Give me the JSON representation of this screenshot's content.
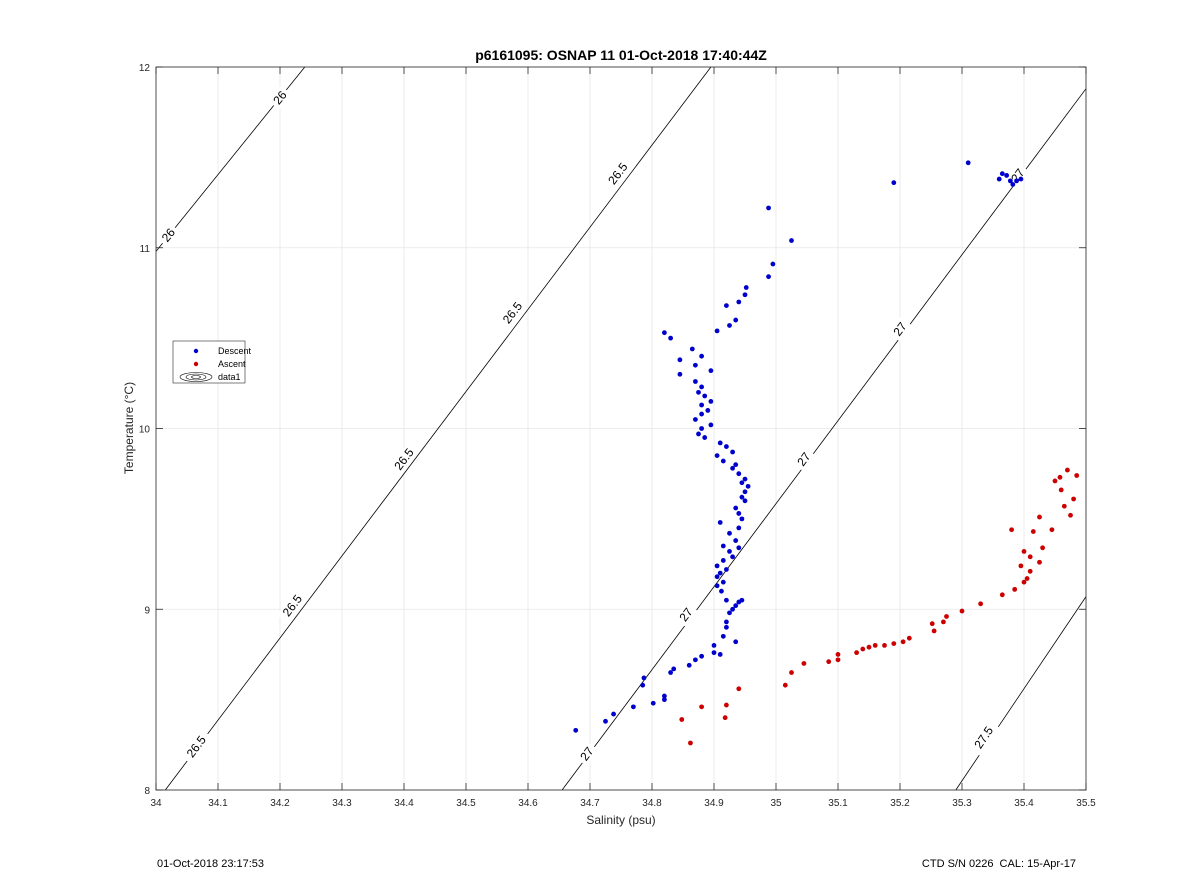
{
  "footer": {
    "left": "01-Oct-2018 23:17:53",
    "right": "CTD S/N 0226  CAL: 15-Apr-17"
  },
  "chart_data": {
    "type": "scatter",
    "title": "p6161095: OSNAP 11 01-Oct-2018 17:40:44Z",
    "xlabel": "Salinity (psu)",
    "ylabel": "Temperature (°C)",
    "xlim": [
      34,
      35.5
    ],
    "ylim": [
      8,
      12
    ],
    "xticks": [
      "34",
      "34.1",
      "34.2",
      "34.3",
      "34.4",
      "34.5",
      "34.6",
      "34.7",
      "34.8",
      "34.9",
      "35",
      "35.1",
      "35.2",
      "35.3",
      "35.4",
      "35.5"
    ],
    "yticks": [
      "8",
      "9",
      "10",
      "11",
      "12"
    ],
    "grid": true,
    "legend_position": "middle-left",
    "legend": [
      "Descent",
      "Ascent",
      "data1"
    ],
    "contours": [
      {
        "level": "26",
        "points": [
          [
            34,
            10.98
          ],
          [
            34.24,
            12
          ]
        ],
        "labels": [
          [
            34.02,
            11.07
          ],
          [
            34.2,
            11.83
          ]
        ]
      },
      {
        "level": "26.5",
        "points": [
          [
            34.015,
            8
          ],
          [
            34.895,
            12
          ]
        ],
        "labels": [
          [
            34.065,
            8.24
          ],
          [
            34.22,
            9.02
          ],
          [
            34.4,
            9.83
          ],
          [
            34.575,
            10.64
          ],
          [
            34.745,
            11.41
          ]
        ]
      },
      {
        "level": "27",
        "points": [
          [
            34.655,
            8
          ],
          [
            35.5,
            11.88
          ]
        ],
        "labels": [
          [
            34.695,
            8.2
          ],
          [
            34.855,
            8.97
          ],
          [
            35.045,
            9.83
          ],
          [
            35.2,
            10.55
          ],
          [
            35.39,
            11.4
          ]
        ]
      },
      {
        "level": "27.5",
        "points": [
          [
            35.29,
            8
          ],
          [
            35.5,
            9.07
          ]
        ],
        "labels": [
          [
            35.335,
            8.29
          ]
        ]
      }
    ],
    "series": [
      {
        "name": "Descent",
        "color": "#0000cc",
        "points": [
          [
            34.677,
            8.33
          ],
          [
            34.725,
            8.38
          ],
          [
            34.738,
            8.42
          ],
          [
            34.77,
            8.46
          ],
          [
            34.785,
            8.58
          ],
          [
            34.787,
            8.62
          ],
          [
            34.802,
            8.48
          ],
          [
            34.82,
            8.5
          ],
          [
            34.82,
            8.52
          ],
          [
            34.83,
            8.65
          ],
          [
            34.835,
            8.67
          ],
          [
            34.86,
            8.69
          ],
          [
            34.87,
            8.72
          ],
          [
            34.88,
            8.74
          ],
          [
            34.9,
            8.76
          ],
          [
            34.91,
            8.75
          ],
          [
            34.9,
            8.8
          ],
          [
            34.915,
            8.85
          ],
          [
            34.92,
            8.9
          ],
          [
            34.92,
            8.93
          ],
          [
            34.935,
            8.82
          ],
          [
            34.925,
            8.98
          ],
          [
            34.93,
            9.0
          ],
          [
            34.935,
            9.02
          ],
          [
            34.94,
            9.04
          ],
          [
            34.945,
            9.05
          ],
          [
            34.92,
            9.05
          ],
          [
            34.912,
            9.1
          ],
          [
            34.905,
            9.13
          ],
          [
            34.915,
            9.15
          ],
          [
            34.905,
            9.18
          ],
          [
            34.91,
            9.2
          ],
          [
            34.92,
            9.22
          ],
          [
            34.905,
            9.24
          ],
          [
            34.915,
            9.27
          ],
          [
            34.93,
            9.29
          ],
          [
            34.925,
            9.32
          ],
          [
            34.94,
            9.34
          ],
          [
            34.915,
            9.35
          ],
          [
            34.935,
            9.38
          ],
          [
            34.925,
            9.42
          ],
          [
            34.94,
            9.45
          ],
          [
            34.91,
            9.48
          ],
          [
            34.945,
            9.5
          ],
          [
            34.94,
            9.53
          ],
          [
            34.935,
            9.56
          ],
          [
            34.95,
            9.6
          ],
          [
            34.945,
            9.62
          ],
          [
            34.95,
            9.65
          ],
          [
            34.955,
            9.68
          ],
          [
            34.945,
            9.7
          ],
          [
            34.95,
            9.72
          ],
          [
            34.94,
            9.75
          ],
          [
            34.93,
            9.78
          ],
          [
            34.935,
            9.8
          ],
          [
            34.915,
            9.82
          ],
          [
            34.905,
            9.85
          ],
          [
            34.93,
            9.87
          ],
          [
            34.92,
            9.9
          ],
          [
            34.91,
            9.92
          ],
          [
            34.885,
            9.95
          ],
          [
            34.875,
            9.97
          ],
          [
            34.88,
            10.0
          ],
          [
            34.895,
            10.02
          ],
          [
            34.87,
            10.05
          ],
          [
            34.88,
            10.08
          ],
          [
            34.89,
            10.1
          ],
          [
            34.88,
            10.13
          ],
          [
            34.895,
            10.15
          ],
          [
            34.885,
            10.18
          ],
          [
            34.875,
            10.2
          ],
          [
            34.88,
            10.23
          ],
          [
            34.87,
            10.26
          ],
          [
            34.845,
            10.3
          ],
          [
            34.895,
            10.32
          ],
          [
            34.87,
            10.35
          ],
          [
            34.845,
            10.38
          ],
          [
            34.88,
            10.4
          ],
          [
            34.865,
            10.44
          ],
          [
            34.83,
            10.5
          ],
          [
            34.82,
            10.53
          ],
          [
            34.905,
            10.54
          ],
          [
            34.925,
            10.57
          ],
          [
            34.935,
            10.6
          ],
          [
            34.92,
            10.68
          ],
          [
            34.94,
            10.7
          ],
          [
            34.95,
            10.74
          ],
          [
            34.952,
            10.78
          ],
          [
            34.988,
            10.84
          ],
          [
            34.995,
            10.91
          ],
          [
            35.025,
            11.04
          ],
          [
            34.988,
            11.22
          ],
          [
            35.19,
            11.36
          ],
          [
            35.31,
            11.47
          ],
          [
            35.36,
            11.38
          ],
          [
            35.365,
            11.41
          ],
          [
            35.372,
            11.4
          ],
          [
            35.378,
            11.37
          ],
          [
            35.382,
            11.35
          ],
          [
            35.388,
            11.37
          ],
          [
            35.395,
            11.38
          ]
        ]
      },
      {
        "name": "Ascent",
        "color": "#cc0000",
        "points": [
          [
            34.862,
            8.26
          ],
          [
            34.848,
            8.39
          ],
          [
            34.918,
            8.4
          ],
          [
            34.88,
            8.46
          ],
          [
            34.92,
            8.47
          ],
          [
            34.94,
            8.56
          ],
          [
            35.015,
            8.58
          ],
          [
            35.025,
            8.65
          ],
          [
            35.045,
            8.7
          ],
          [
            35.085,
            8.71
          ],
          [
            35.1,
            8.72
          ],
          [
            35.1,
            8.75
          ],
          [
            35.13,
            8.76
          ],
          [
            35.14,
            8.78
          ],
          [
            35.15,
            8.79
          ],
          [
            35.16,
            8.8
          ],
          [
            35.175,
            8.8
          ],
          [
            35.19,
            8.81
          ],
          [
            35.205,
            8.82
          ],
          [
            35.215,
            8.84
          ],
          [
            35.255,
            8.88
          ],
          [
            35.252,
            8.92
          ],
          [
            35.27,
            8.93
          ],
          [
            35.275,
            8.96
          ],
          [
            35.3,
            8.99
          ],
          [
            35.33,
            9.03
          ],
          [
            35.365,
            9.08
          ],
          [
            35.385,
            9.11
          ],
          [
            35.4,
            9.15
          ],
          [
            35.405,
            9.17
          ],
          [
            35.41,
            9.21
          ],
          [
            35.395,
            9.24
          ],
          [
            35.425,
            9.26
          ],
          [
            35.41,
            9.29
          ],
          [
            35.4,
            9.32
          ],
          [
            35.43,
            9.34
          ],
          [
            35.38,
            9.44
          ],
          [
            35.445,
            9.44
          ],
          [
            35.415,
            9.43
          ],
          [
            35.425,
            9.51
          ],
          [
            35.475,
            9.52
          ],
          [
            35.465,
            9.57
          ],
          [
            35.48,
            9.61
          ],
          [
            35.46,
            9.66
          ],
          [
            35.45,
            9.71
          ],
          [
            35.458,
            9.73
          ],
          [
            35.485,
            9.74
          ],
          [
            35.47,
            9.77
          ]
        ]
      }
    ]
  }
}
